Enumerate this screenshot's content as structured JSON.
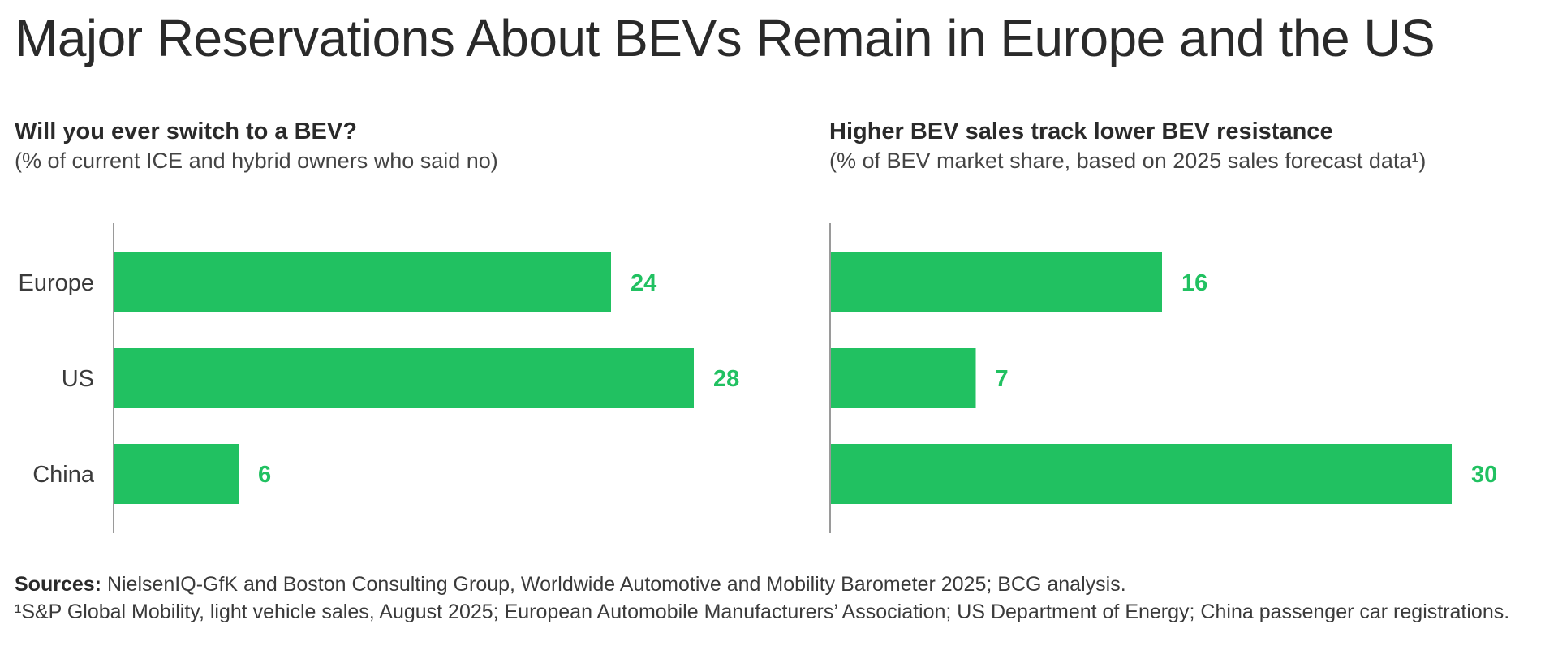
{
  "page": {
    "title": "Major Reservations About BEVs Remain in Europe and the US",
    "colors": {
      "bar": "#21c161",
      "label": "#21c161",
      "axis": "#9a9a9a"
    }
  },
  "chart_data": [
    {
      "type": "bar",
      "orientation": "horizontal",
      "title": "Will you ever switch to a BEV?",
      "subtitle": "(% of current ICE and hybrid owners who said no)",
      "categories": [
        "Europe",
        "US",
        "China"
      ],
      "values": [
        24,
        28,
        6
      ],
      "data_labels": [
        "24",
        "28",
        "6"
      ],
      "xlim": [
        0,
        30
      ],
      "grid": false
    },
    {
      "type": "bar",
      "orientation": "horizontal",
      "title": "Higher BEV sales track lower BEV resistance",
      "subtitle": "(% of BEV market share, based on 2025 sales forecast data¹)",
      "categories": [
        "Europe",
        "US",
        "China"
      ],
      "values": [
        16,
        7,
        30
      ],
      "data_labels": [
        "16",
        "7",
        "30"
      ],
      "xlim": [
        0,
        30
      ],
      "grid": false
    }
  ],
  "sources": {
    "label": "Sources:",
    "text": "NielsenIQ-GfK and Boston Consulting Group, Worldwide Automotive and Mobility Barometer 2025; BCG analysis.",
    "footnote": "¹S&P Global Mobility, light vehicle sales, August 2025; European Automobile Manufacturers’ Association; US Department of Energy; China passenger car registrations."
  }
}
